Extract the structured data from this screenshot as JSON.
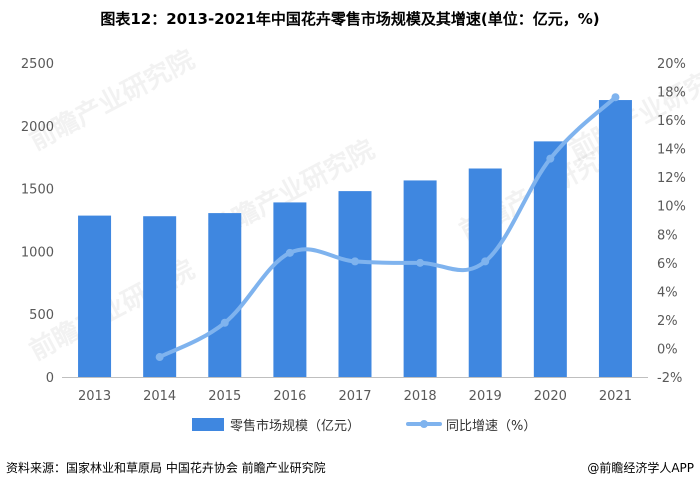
{
  "title": "图表12：2013-2021年中国花卉零售市场规模及其增速(单位：亿元，%)",
  "source": "资料来源：国家林业和草原局 中国花卉协会 前瞻产业研究院",
  "footer_right": "@前瞻经济学人APP",
  "watermark": "前瞻产业研究院",
  "colors": {
    "bar": "#3f87e0",
    "line": "#7fb3ee"
  },
  "chart_data": {
    "type": "bar",
    "categories": [
      "2013",
      "2014",
      "2015",
      "2016",
      "2017",
      "2018",
      "2019",
      "2020",
      "2021"
    ],
    "series": [
      {
        "name": "零售市场规模（亿元）",
        "type": "bar",
        "axis": "left",
        "values": [
          1285,
          1280,
          1305,
          1390,
          1480,
          1565,
          1660,
          1876,
          2205
        ]
      },
      {
        "name": "同比增速（%）",
        "type": "line",
        "axis": "right",
        "values": [
          null,
          -0.6,
          1.8,
          6.7,
          6.1,
          6.0,
          6.1,
          13.3,
          17.6
        ]
      }
    ],
    "y_left": {
      "min": 0,
      "max": 2500,
      "ticks": [
        "0",
        "500",
        "1000",
        "1500",
        "2000",
        "2500"
      ]
    },
    "y_right": {
      "min": -2,
      "max": 20,
      "ticks": [
        "-2%",
        "0%",
        "2%",
        "4%",
        "6%",
        "8%",
        "10%",
        "12%",
        "14%",
        "16%",
        "18%",
        "20%"
      ]
    },
    "legend_position": "bottom"
  }
}
